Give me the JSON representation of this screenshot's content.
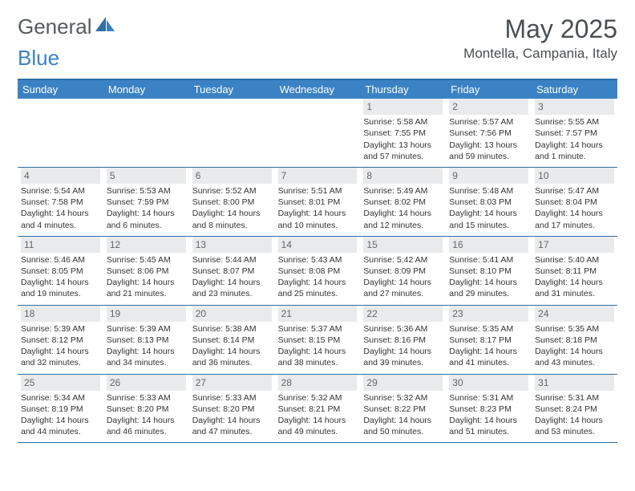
{
  "brand": {
    "word1": "General",
    "word2": "Blue"
  },
  "header": {
    "title": "May 2025",
    "location": "Montella, Campania, Italy"
  },
  "colors": {
    "headerBar": "#3b82c4",
    "ruleLine": "#2f6ea8",
    "dayNumBg": "#e9eaeb",
    "dayNumText": "#626669",
    "bodyText": "#333333",
    "titleText": "#4a4e52"
  },
  "daysOfWeek": [
    "Sunday",
    "Monday",
    "Tuesday",
    "Wednesday",
    "Thursday",
    "Friday",
    "Saturday"
  ],
  "weeks": [
    [
      null,
      null,
      null,
      null,
      {
        "n": "1",
        "sr": "5:58 AM",
        "ss": "7:55 PM",
        "dl": "13 hours and 57 minutes."
      },
      {
        "n": "2",
        "sr": "5:57 AM",
        "ss": "7:56 PM",
        "dl": "13 hours and 59 minutes."
      },
      {
        "n": "3",
        "sr": "5:55 AM",
        "ss": "7:57 PM",
        "dl": "14 hours and 1 minute."
      }
    ],
    [
      {
        "n": "4",
        "sr": "5:54 AM",
        "ss": "7:58 PM",
        "dl": "14 hours and 4 minutes."
      },
      {
        "n": "5",
        "sr": "5:53 AM",
        "ss": "7:59 PM",
        "dl": "14 hours and 6 minutes."
      },
      {
        "n": "6",
        "sr": "5:52 AM",
        "ss": "8:00 PM",
        "dl": "14 hours and 8 minutes."
      },
      {
        "n": "7",
        "sr": "5:51 AM",
        "ss": "8:01 PM",
        "dl": "14 hours and 10 minutes."
      },
      {
        "n": "8",
        "sr": "5:49 AM",
        "ss": "8:02 PM",
        "dl": "14 hours and 12 minutes."
      },
      {
        "n": "9",
        "sr": "5:48 AM",
        "ss": "8:03 PM",
        "dl": "14 hours and 15 minutes."
      },
      {
        "n": "10",
        "sr": "5:47 AM",
        "ss": "8:04 PM",
        "dl": "14 hours and 17 minutes."
      }
    ],
    [
      {
        "n": "11",
        "sr": "5:46 AM",
        "ss": "8:05 PM",
        "dl": "14 hours and 19 minutes."
      },
      {
        "n": "12",
        "sr": "5:45 AM",
        "ss": "8:06 PM",
        "dl": "14 hours and 21 minutes."
      },
      {
        "n": "13",
        "sr": "5:44 AM",
        "ss": "8:07 PM",
        "dl": "14 hours and 23 minutes."
      },
      {
        "n": "14",
        "sr": "5:43 AM",
        "ss": "8:08 PM",
        "dl": "14 hours and 25 minutes."
      },
      {
        "n": "15",
        "sr": "5:42 AM",
        "ss": "8:09 PM",
        "dl": "14 hours and 27 minutes."
      },
      {
        "n": "16",
        "sr": "5:41 AM",
        "ss": "8:10 PM",
        "dl": "14 hours and 29 minutes."
      },
      {
        "n": "17",
        "sr": "5:40 AM",
        "ss": "8:11 PM",
        "dl": "14 hours and 31 minutes."
      }
    ],
    [
      {
        "n": "18",
        "sr": "5:39 AM",
        "ss": "8:12 PM",
        "dl": "14 hours and 32 minutes."
      },
      {
        "n": "19",
        "sr": "5:39 AM",
        "ss": "8:13 PM",
        "dl": "14 hours and 34 minutes."
      },
      {
        "n": "20",
        "sr": "5:38 AM",
        "ss": "8:14 PM",
        "dl": "14 hours and 36 minutes."
      },
      {
        "n": "21",
        "sr": "5:37 AM",
        "ss": "8:15 PM",
        "dl": "14 hours and 38 minutes."
      },
      {
        "n": "22",
        "sr": "5:36 AM",
        "ss": "8:16 PM",
        "dl": "14 hours and 39 minutes."
      },
      {
        "n": "23",
        "sr": "5:35 AM",
        "ss": "8:17 PM",
        "dl": "14 hours and 41 minutes."
      },
      {
        "n": "24",
        "sr": "5:35 AM",
        "ss": "8:18 PM",
        "dl": "14 hours and 43 minutes."
      }
    ],
    [
      {
        "n": "25",
        "sr": "5:34 AM",
        "ss": "8:19 PM",
        "dl": "14 hours and 44 minutes."
      },
      {
        "n": "26",
        "sr": "5:33 AM",
        "ss": "8:20 PM",
        "dl": "14 hours and 46 minutes."
      },
      {
        "n": "27",
        "sr": "5:33 AM",
        "ss": "8:20 PM",
        "dl": "14 hours and 47 minutes."
      },
      {
        "n": "28",
        "sr": "5:32 AM",
        "ss": "8:21 PM",
        "dl": "14 hours and 49 minutes."
      },
      {
        "n": "29",
        "sr": "5:32 AM",
        "ss": "8:22 PM",
        "dl": "14 hours and 50 minutes."
      },
      {
        "n": "30",
        "sr": "5:31 AM",
        "ss": "8:23 PM",
        "dl": "14 hours and 51 minutes."
      },
      {
        "n": "31",
        "sr": "5:31 AM",
        "ss": "8:24 PM",
        "dl": "14 hours and 53 minutes."
      }
    ]
  ],
  "labels": {
    "sunrise": "Sunrise: ",
    "sunset": "Sunset: ",
    "daylight": "Daylight: "
  }
}
